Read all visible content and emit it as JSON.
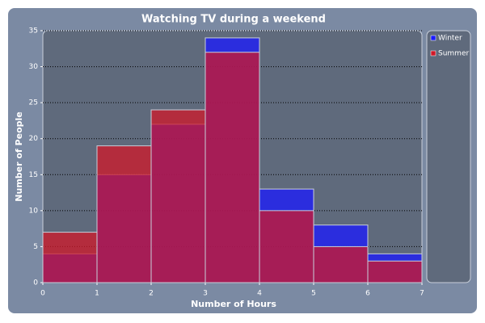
{
  "chart_data": {
    "type": "histogram",
    "title": "Watching TV during a weekend",
    "x_label": "Number of Hours",
    "y_label": "Number of People",
    "bins": [
      0,
      1,
      2,
      3,
      4,
      5,
      6,
      7
    ],
    "series": [
      {
        "name": "Winter",
        "color": "#1a1aff",
        "values": [
          4,
          15,
          22,
          34,
          13,
          8,
          4
        ]
      },
      {
        "name": "Summer",
        "color": "#d01828",
        "values": [
          7,
          19,
          24,
          32,
          10,
          5,
          3
        ]
      }
    ],
    "xlim": [
      0,
      7
    ],
    "xticks": [
      0,
      1,
      2,
      3,
      4,
      5,
      6,
      7
    ],
    "ylim": [
      0,
      35
    ],
    "yticks": [
      0,
      5,
      10,
      15,
      20,
      25,
      30,
      35
    ],
    "grid": true,
    "legend": "right"
  }
}
